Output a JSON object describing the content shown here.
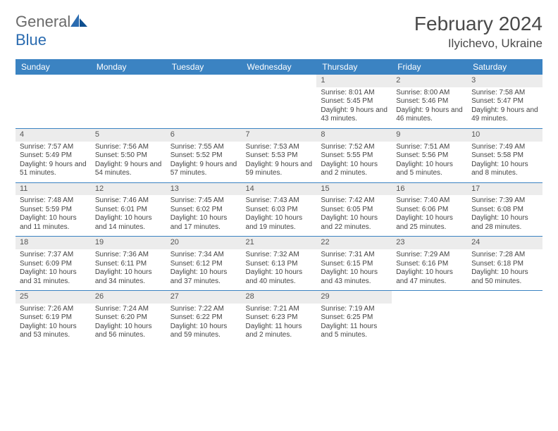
{
  "logo": {
    "text_gray": "General",
    "text_blue": "Blue"
  },
  "title": "February 2024",
  "location": "Ilyichevo, Ukraine",
  "colors": {
    "header_bg": "#3b83c2",
    "header_fg": "#ffffff",
    "daynum_bg": "#ececec",
    "rule": "#3b83c2"
  },
  "weekdays": [
    "Sunday",
    "Monday",
    "Tuesday",
    "Wednesday",
    "Thursday",
    "Friday",
    "Saturday"
  ],
  "leading_blanks": 4,
  "days": [
    {
      "n": 1,
      "sr": "8:01 AM",
      "ss": "5:45 PM",
      "dl": "9 hours and 43 minutes."
    },
    {
      "n": 2,
      "sr": "8:00 AM",
      "ss": "5:46 PM",
      "dl": "9 hours and 46 minutes."
    },
    {
      "n": 3,
      "sr": "7:58 AM",
      "ss": "5:47 PM",
      "dl": "9 hours and 49 minutes."
    },
    {
      "n": 4,
      "sr": "7:57 AM",
      "ss": "5:49 PM",
      "dl": "9 hours and 51 minutes."
    },
    {
      "n": 5,
      "sr": "7:56 AM",
      "ss": "5:50 PM",
      "dl": "9 hours and 54 minutes."
    },
    {
      "n": 6,
      "sr": "7:55 AM",
      "ss": "5:52 PM",
      "dl": "9 hours and 57 minutes."
    },
    {
      "n": 7,
      "sr": "7:53 AM",
      "ss": "5:53 PM",
      "dl": "9 hours and 59 minutes."
    },
    {
      "n": 8,
      "sr": "7:52 AM",
      "ss": "5:55 PM",
      "dl": "10 hours and 2 minutes."
    },
    {
      "n": 9,
      "sr": "7:51 AM",
      "ss": "5:56 PM",
      "dl": "10 hours and 5 minutes."
    },
    {
      "n": 10,
      "sr": "7:49 AM",
      "ss": "5:58 PM",
      "dl": "10 hours and 8 minutes."
    },
    {
      "n": 11,
      "sr": "7:48 AM",
      "ss": "5:59 PM",
      "dl": "10 hours and 11 minutes."
    },
    {
      "n": 12,
      "sr": "7:46 AM",
      "ss": "6:01 PM",
      "dl": "10 hours and 14 minutes."
    },
    {
      "n": 13,
      "sr": "7:45 AM",
      "ss": "6:02 PM",
      "dl": "10 hours and 17 minutes."
    },
    {
      "n": 14,
      "sr": "7:43 AM",
      "ss": "6:03 PM",
      "dl": "10 hours and 19 minutes."
    },
    {
      "n": 15,
      "sr": "7:42 AM",
      "ss": "6:05 PM",
      "dl": "10 hours and 22 minutes."
    },
    {
      "n": 16,
      "sr": "7:40 AM",
      "ss": "6:06 PM",
      "dl": "10 hours and 25 minutes."
    },
    {
      "n": 17,
      "sr": "7:39 AM",
      "ss": "6:08 PM",
      "dl": "10 hours and 28 minutes."
    },
    {
      "n": 18,
      "sr": "7:37 AM",
      "ss": "6:09 PM",
      "dl": "10 hours and 31 minutes."
    },
    {
      "n": 19,
      "sr": "7:36 AM",
      "ss": "6:11 PM",
      "dl": "10 hours and 34 minutes."
    },
    {
      "n": 20,
      "sr": "7:34 AM",
      "ss": "6:12 PM",
      "dl": "10 hours and 37 minutes."
    },
    {
      "n": 21,
      "sr": "7:32 AM",
      "ss": "6:13 PM",
      "dl": "10 hours and 40 minutes."
    },
    {
      "n": 22,
      "sr": "7:31 AM",
      "ss": "6:15 PM",
      "dl": "10 hours and 43 minutes."
    },
    {
      "n": 23,
      "sr": "7:29 AM",
      "ss": "6:16 PM",
      "dl": "10 hours and 47 minutes."
    },
    {
      "n": 24,
      "sr": "7:28 AM",
      "ss": "6:18 PM",
      "dl": "10 hours and 50 minutes."
    },
    {
      "n": 25,
      "sr": "7:26 AM",
      "ss": "6:19 PM",
      "dl": "10 hours and 53 minutes."
    },
    {
      "n": 26,
      "sr": "7:24 AM",
      "ss": "6:20 PM",
      "dl": "10 hours and 56 minutes."
    },
    {
      "n": 27,
      "sr": "7:22 AM",
      "ss": "6:22 PM",
      "dl": "10 hours and 59 minutes."
    },
    {
      "n": 28,
      "sr": "7:21 AM",
      "ss": "6:23 PM",
      "dl": "11 hours and 2 minutes."
    },
    {
      "n": 29,
      "sr": "7:19 AM",
      "ss": "6:25 PM",
      "dl": "11 hours and 5 minutes."
    }
  ],
  "labels": {
    "sunrise": "Sunrise:",
    "sunset": "Sunset:",
    "daylight": "Daylight:"
  }
}
